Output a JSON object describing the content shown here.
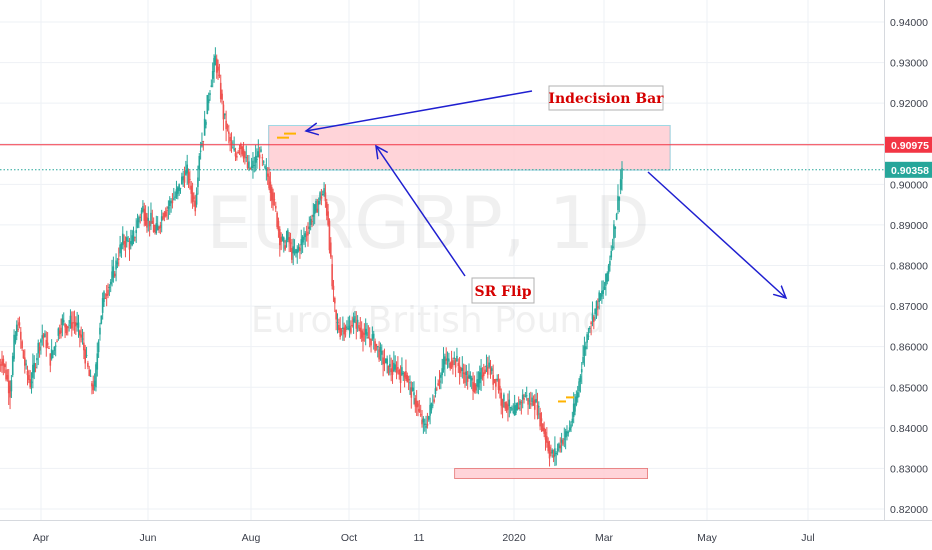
{
  "chart_data": {
    "type": "candlestick",
    "symbol": "EURGBP, 1D",
    "subtitle": "Euro / British Pound",
    "y_axis": {
      "ylim": [
        0.816,
        0.945
      ],
      "ticks": [
        "0.94000",
        "0.93000",
        "0.92000",
        "0.91000",
        "0.90000",
        "0.89000",
        "0.88000",
        "0.87000",
        "0.86000",
        "0.85000",
        "0.84000",
        "0.83000",
        "0.82000"
      ]
    },
    "x_axis": {
      "labels": [
        "Apr",
        "Jun",
        "Aug",
        "Oct",
        "11",
        "2020",
        "Mar",
        "May",
        "Jul"
      ]
    },
    "price_lines": [
      {
        "label": "0.90975",
        "value": 0.90975,
        "color": "#f23645",
        "style": "solid"
      },
      {
        "label": "0.90358",
        "value": 0.90358,
        "color": "#26a69a",
        "style": "dotted"
      }
    ],
    "zones": [
      {
        "name": "resistance-zone",
        "from_date": "2019-08-10",
        "to_date": "2020-03-28",
        "low": 0.9035,
        "high": 0.9145,
        "color": "#ffcdd2"
      },
      {
        "name": "support-zone",
        "from_date": "2019-11-25",
        "to_date": "2020-03-15",
        "low": 0.8275,
        "high": 0.83,
        "color": "#ffcdd2"
      }
    ],
    "annotations": [
      {
        "text": "Indecision Bar",
        "color": "#d50000"
      },
      {
        "text": "SR Flip",
        "color": "#d50000"
      }
    ],
    "arrow_color": "#1f1fd0",
    "up_color": "#26a69a",
    "down_color": "#ef5350",
    "highlight_bar_color": "#ffb300",
    "grid": true,
    "closes": [
      0.857,
      0.853,
      0.849,
      0.861,
      0.866,
      0.859,
      0.854,
      0.851,
      0.855,
      0.86,
      0.863,
      0.861,
      0.857,
      0.86,
      0.864,
      0.866,
      0.865,
      0.866,
      0.866,
      0.864,
      0.861,
      0.856,
      0.851,
      0.85,
      0.863,
      0.871,
      0.874,
      0.876,
      0.879,
      0.883,
      0.886,
      0.886,
      0.885,
      0.888,
      0.892,
      0.894,
      0.891,
      0.891,
      0.888,
      0.89,
      0.893,
      0.894,
      0.896,
      0.897,
      0.899,
      0.902,
      0.903,
      0.898,
      0.895,
      0.908,
      0.912,
      0.92,
      0.926,
      0.931,
      0.925,
      0.917,
      0.913,
      0.909,
      0.907,
      0.91,
      0.908,
      0.904,
      0.904,
      0.906,
      0.908,
      0.904,
      0.902,
      0.898,
      0.893,
      0.887,
      0.885,
      0.887,
      0.883,
      0.883,
      0.885,
      0.887,
      0.889,
      0.892,
      0.894,
      0.897,
      0.898,
      0.891,
      0.875,
      0.866,
      0.864,
      0.865,
      0.864,
      0.866,
      0.866,
      0.864,
      0.863,
      0.862,
      0.862,
      0.86,
      0.858,
      0.856,
      0.855,
      0.854,
      0.855,
      0.853,
      0.854,
      0.851,
      0.848,
      0.846,
      0.842,
      0.84,
      0.843,
      0.847,
      0.851,
      0.853,
      0.857,
      0.856,
      0.857,
      0.856,
      0.854,
      0.853,
      0.852,
      0.851,
      0.85,
      0.853,
      0.855,
      0.855,
      0.852,
      0.852,
      0.847,
      0.846,
      0.845,
      0.843,
      0.845,
      0.847,
      0.848,
      0.846,
      0.847,
      0.845,
      0.841,
      0.838,
      0.834,
      0.833,
      0.835,
      0.837,
      0.838,
      0.84,
      0.844,
      0.849,
      0.856,
      0.861,
      0.866,
      0.868,
      0.871,
      0.873,
      0.876,
      0.882,
      0.889,
      0.896,
      0.904
    ]
  }
}
